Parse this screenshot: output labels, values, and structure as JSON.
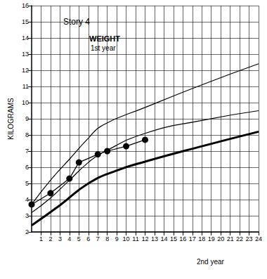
{
  "chart_data": {
    "type": "line",
    "title": "Story 4",
    "subtitle": "WEIGHT",
    "annotations": [
      "1st year",
      "2nd year"
    ],
    "y_label": "KILOGRAMS",
    "xlim": [
      0,
      24
    ],
    "xticks": [
      1,
      2,
      3,
      4,
      5,
      6,
      7,
      8,
      9,
      10,
      11,
      12,
      13,
      14,
      15,
      16,
      17,
      18,
      19,
      20,
      21,
      22,
      23,
      24
    ],
    "ylim": [
      2,
      16
    ],
    "yticks": [
      2,
      3,
      4,
      5,
      6,
      7,
      8,
      9,
      10,
      11,
      12,
      13,
      14,
      15,
      16
    ],
    "grid": true,
    "series": [
      {
        "color": "#000000",
        "marker": "none",
        "line_style": "solid",
        "x": [
          0,
          2,
          4,
          6,
          7.5,
          12,
          18,
          24
        ],
        "values": [
          3.7,
          5.2,
          6.5,
          7.8,
          8.6,
          9.7,
          11.1,
          12.4
        ]
      },
      {
        "color": "#000000",
        "marker": "none",
        "line_style": "solid",
        "x": [
          0,
          2,
          4,
          6,
          7.5,
          12,
          18,
          24
        ],
        "values": [
          3.2,
          4.1,
          5.2,
          6.3,
          6.9,
          8.1,
          8.9,
          9.5
        ]
      },
      {
        "color": "#000000",
        "marker": "none",
        "line_style": "thick",
        "x": [
          0,
          3,
          6,
          9,
          12,
          18,
          24
        ],
        "values": [
          2.4,
          3.65,
          5.0,
          5.8,
          6.35,
          7.3,
          8.2
        ]
      },
      {
        "color": "#000000",
        "marker": "circle",
        "line_style": "solid",
        "x": [
          0,
          2,
          4,
          5,
          7,
          8,
          10,
          12
        ],
        "values": [
          3.7,
          4.4,
          5.3,
          6.3,
          6.8,
          7.0,
          7.3,
          7.7
        ]
      }
    ]
  }
}
